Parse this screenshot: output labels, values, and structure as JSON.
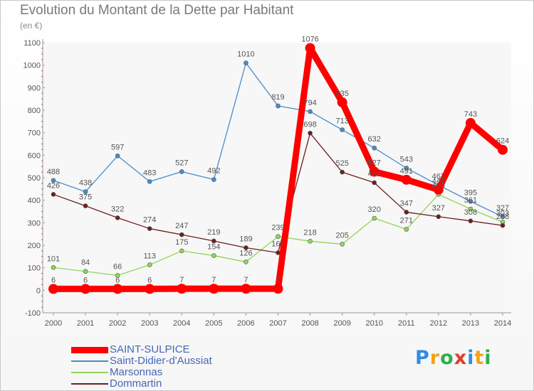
{
  "title": "Evolution du Montant de la Dette par Habitant",
  "unit": "(en €)",
  "chart_data": {
    "type": "line",
    "title": "Evolution du Montant de la Dette par Habitant",
    "ylabel": "(en €)",
    "xlabel": "",
    "ylim": [
      -100,
      1100
    ],
    "yticks": [
      "-100",
      "0",
      "100",
      "200",
      "300",
      "400",
      "500",
      "600",
      "700",
      "800",
      "900",
      "1000",
      "1100"
    ],
    "categories": [
      "2000",
      "2001",
      "2002",
      "2003",
      "2004",
      "2005",
      "2006",
      "2007",
      "2008",
      "2009",
      "2010",
      "2011",
      "2012",
      "2013",
      "2014"
    ],
    "grid": false,
    "legend_placement": "bottom",
    "series": [
      {
        "name": "SAINT-SULPICE",
        "color": "#ff0000",
        "values": [
          6,
          6,
          6,
          6,
          7,
          7,
          7,
          7,
          1076,
          835,
          527,
          491,
          447,
          743,
          624
        ],
        "labels": [
          "6",
          "6",
          "6",
          "6",
          "7",
          "7",
          "7",
          "7",
          "1076",
          "835",
          "527",
          "491",
          "447",
          "743",
          "624"
        ]
      },
      {
        "name": "Saint-Didier-d'Aussiat",
        "color": "#4a8cc8",
        "values": [
          488,
          438,
          597,
          483,
          527,
          492,
          1010,
          819,
          794,
          713,
          632,
          543,
          467,
          395,
          327
        ],
        "labels": [
          "488",
          "438",
          "597",
          "483",
          "527",
          "492",
          "1010",
          "819",
          "794",
          "713",
          "632",
          "543",
          "467",
          "395",
          "327"
        ]
      },
      {
        "name": "Marsonnas",
        "color": "#8fd65a",
        "values": [
          101,
          84,
          66,
          113,
          175,
          154,
          126,
          239,
          218,
          205,
          320,
          271,
          426,
          361,
          303
        ],
        "labels": [
          "101",
          "84",
          "66",
          "113",
          "175",
          "154",
          "126",
          "239",
          "218",
          "205",
          "320",
          "271",
          "426",
          "361",
          "303"
        ]
      },
      {
        "name": "Dommartin",
        "color": "#6b1f1f",
        "values": [
          426,
          375,
          322,
          274,
          247,
          219,
          189,
          167,
          698,
          525,
          478,
          347,
          327,
          308,
          288
        ],
        "labels": [
          "426",
          "375",
          "322",
          "274",
          "247",
          "219",
          "189",
          "167",
          "698",
          "525",
          "478",
          "347",
          "327",
          "308",
          "288"
        ]
      }
    ]
  },
  "logo": {
    "letters": [
      "P",
      "r",
      "o",
      "x",
      "i",
      "t",
      "i"
    ],
    "colors": [
      "#2f8de4",
      "#f3a21b",
      "#2fae4a",
      "#e23a2a",
      "#2f8de4",
      "#f3a21b",
      "#2fae4a"
    ]
  }
}
